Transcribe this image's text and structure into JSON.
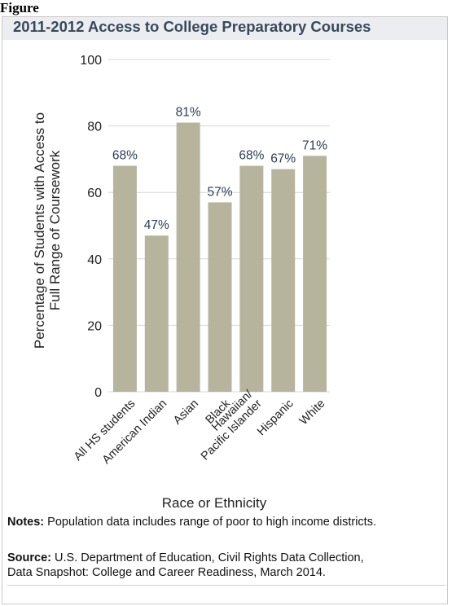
{
  "figure_label": "Figure",
  "notes": {
    "label": "Notes:",
    "text": " Population data includes range of poor to high income districts."
  },
  "source": {
    "label": "Source:",
    "line1": " U.S. Department of Education, Civil Rights Data Collection,",
    "line2": "Data Snapshot: College and Career Readiness, March 2014."
  },
  "colors": {
    "bar": "#b7b49d",
    "title_text": "#37495c",
    "title_band": "#ecedf0",
    "grid": "#d7d7d7",
    "data_label": "#2b3d55"
  },
  "chart_data": {
    "type": "bar",
    "title": "2011-2012 Access to College Preparatory Courses",
    "xlabel": "Race or Ethnicity",
    "ylabel_lines": [
      "Percentage of Students with Access to",
      "Full Range of Coursework"
    ],
    "categories": [
      "All HS students",
      "American Indian",
      "Asian",
      "Black",
      "Hawaiian/ Pacific Islander",
      "Hispanic",
      "White"
    ],
    "category_label_lines": [
      [
        "All HS students"
      ],
      [
        "American Indian"
      ],
      [
        "Asian"
      ],
      [
        "Black"
      ],
      [
        "Hawaiian/",
        "Pacific Islander"
      ],
      [
        "Hispanic"
      ],
      [
        "White"
      ]
    ],
    "values": [
      68,
      47,
      81,
      57,
      68,
      67,
      71
    ],
    "data_labels": [
      "68%",
      "47%",
      "81%",
      "57%",
      "68%",
      "67%",
      "71%"
    ],
    "ylim": [
      0,
      100
    ],
    "yticks": [
      0,
      20,
      40,
      60,
      80,
      100
    ],
    "grid": true,
    "legend": "none"
  }
}
